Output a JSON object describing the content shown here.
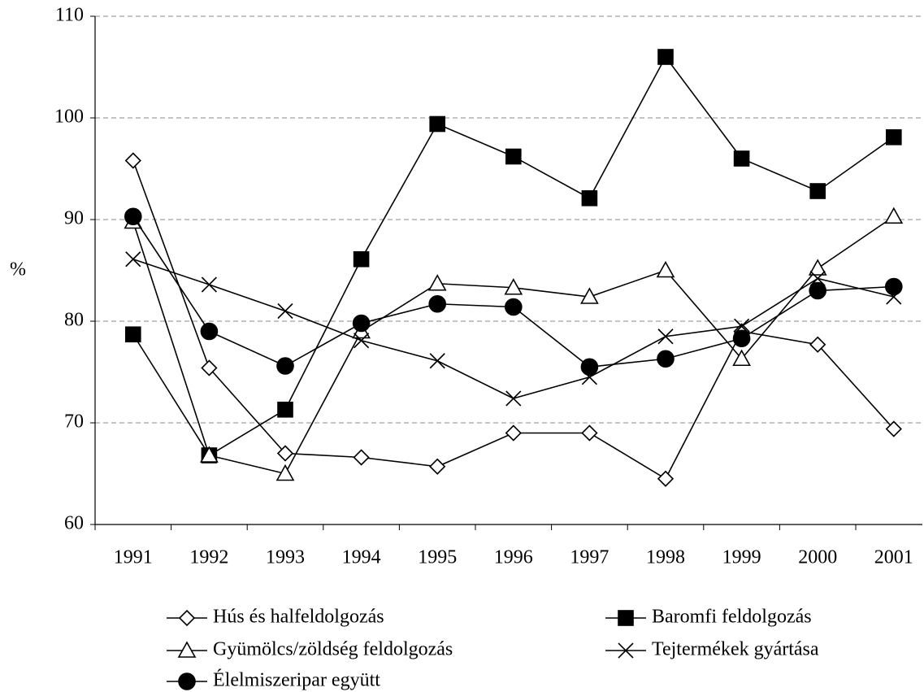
{
  "chart_data": {
    "type": "line",
    "y_label": "%",
    "categories": [
      "1991",
      "1992",
      "1993",
      "1994",
      "1995",
      "1996",
      "1997",
      "1998",
      "1999",
      "2000",
      "2001"
    ],
    "ylim": [
      60,
      110
    ],
    "yticks": [
      60,
      70,
      80,
      90,
      100,
      110
    ],
    "grid": true,
    "legend": "bottom",
    "series": [
      {
        "name": "Hús és halfeldolgozás",
        "color": "#000000",
        "marker": "diamond-open",
        "values": [
          95.8,
          75.4,
          67.0,
          66.6,
          65.7,
          69.0,
          69.0,
          64.5,
          79.0,
          77.7,
          69.4
        ]
      },
      {
        "name": "Baromfi feldolgozás",
        "color": "#000000",
        "marker": "square-filled",
        "values": [
          78.7,
          66.8,
          71.3,
          86.1,
          99.4,
          96.2,
          92.1,
          106.0,
          96.0,
          92.8,
          98.1
        ]
      },
      {
        "name": "Gyümölcs/zöldség feldolgozás",
        "color": "#000000",
        "marker": "triangle-open",
        "values": [
          89.8,
          66.8,
          65.0,
          79.0,
          83.7,
          83.3,
          82.4,
          85.0,
          76.3,
          85.2,
          90.3
        ]
      },
      {
        "name": "Tejtermékek gyártása",
        "color": "#000000",
        "marker": "x",
        "values": [
          86.1,
          83.6,
          81.0,
          78.1,
          76.1,
          72.4,
          74.5,
          78.5,
          79.5,
          84.2,
          82.4
        ]
      },
      {
        "name": "Élelmiszeripar együtt",
        "color": "#000000",
        "marker": "circle-filled",
        "values": [
          90.3,
          79.0,
          75.6,
          79.8,
          81.7,
          81.4,
          75.5,
          76.3,
          78.3,
          83.0,
          83.4
        ]
      }
    ]
  }
}
